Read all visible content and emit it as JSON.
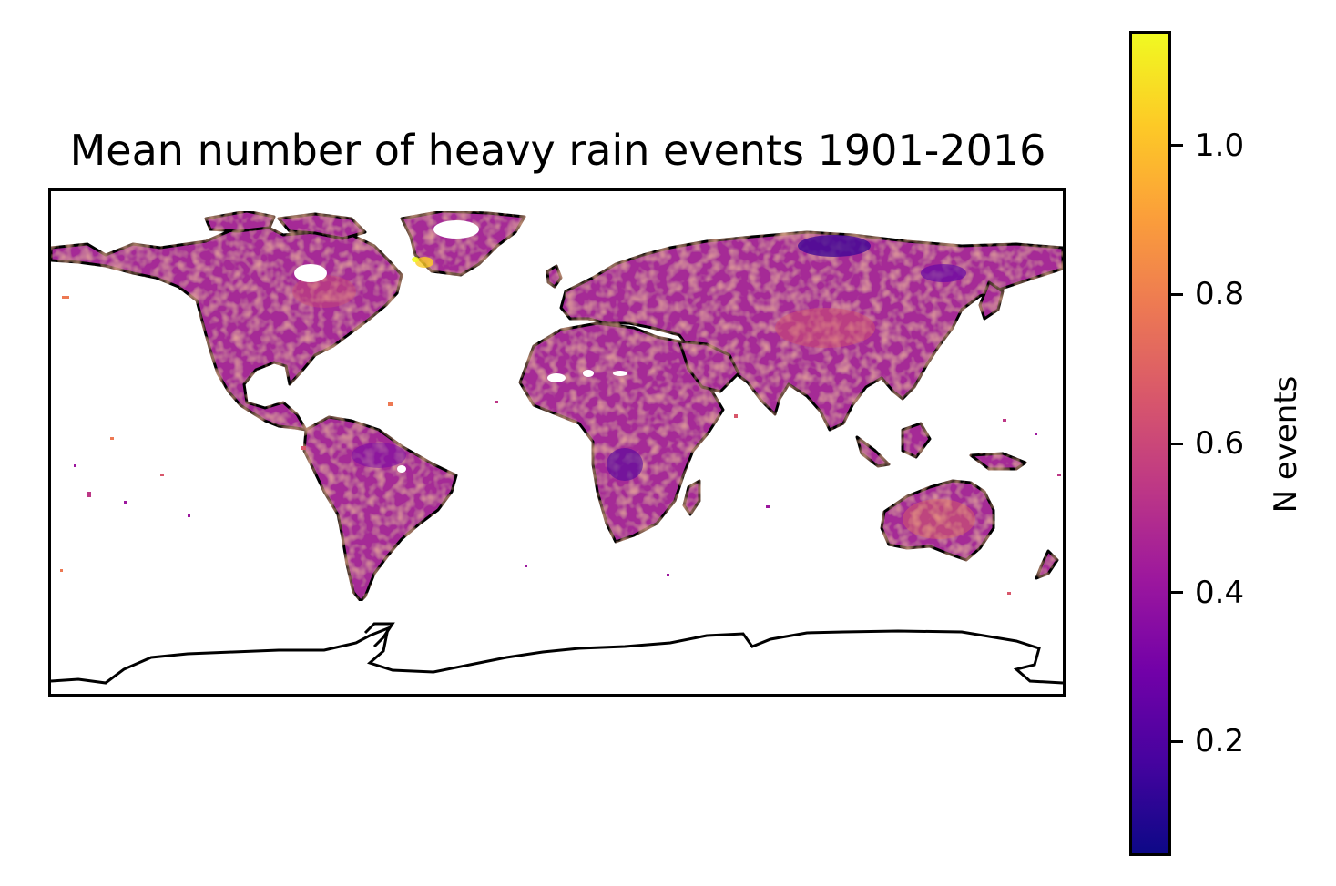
{
  "title": "Mean number of heavy rain events 1901-2016",
  "colorbar": {
    "label": "N events",
    "colormap": "plasma",
    "range": [
      0.05,
      1.15
    ],
    "colors": [
      "#0d0887",
      "#46039f",
      "#7201a8",
      "#9c179e",
      "#bd3786",
      "#d8576b",
      "#ed7953",
      "#fb9f3a",
      "#fdca26",
      "#f0f921"
    ],
    "ticks": [
      {
        "value": 0.2,
        "label": "0.2"
      },
      {
        "value": 0.4,
        "label": "0.4"
      },
      {
        "value": 0.6,
        "label": "0.6"
      },
      {
        "value": 0.8,
        "label": "0.8"
      },
      {
        "value": 1.0,
        "label": "1.0"
      }
    ]
  },
  "map": {
    "projection": "PlateCarree",
    "extent_lon": [
      -180,
      180
    ],
    "extent_lat": [
      -90,
      90
    ],
    "coastlines": true,
    "ocean_color": "#ffffff",
    "land_fill_note": "gridded field over land, mostly 0.4-0.7"
  }
}
